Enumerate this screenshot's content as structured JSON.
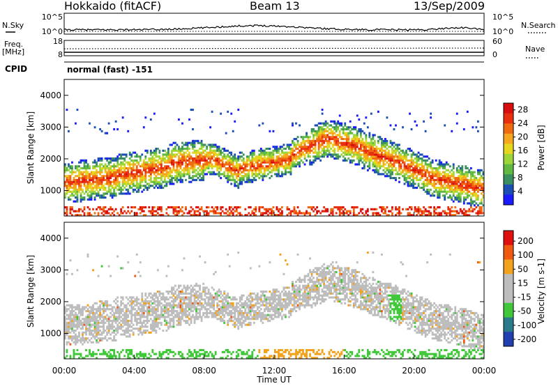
{
  "header": {
    "station": "Hokkaido (fitACF)",
    "beam": "Beam 13",
    "date": "13/Sep/2009",
    "cpid_label": "CPID",
    "cpid_value": "normal (fast) -151"
  },
  "top_panels": {
    "nsky_label": "N.Sky",
    "nsky_ticks": [
      "10^5",
      "10^0"
    ],
    "nsearch_label": "N.Search",
    "nsearch_ticks": [
      "10^5",
      "10^0"
    ],
    "freq_label": "Freq.",
    "freq_unit": "[MHz]",
    "freq_ticks": [
      "18",
      "8"
    ],
    "nave_label": "Nave",
    "nave_ticks": [
      "60",
      "0"
    ]
  },
  "chart_data": [
    {
      "type": "heatmap",
      "name": "power",
      "ylabel": "Slant Range [km]",
      "yticks": [
        "1000",
        "2000",
        "3000",
        "4000"
      ],
      "ylim": [
        200,
        4500
      ],
      "xlim": [
        0,
        24
      ],
      "colorbar_label": "Power [dB]",
      "colorbar_ticks": [
        "4",
        "8",
        "12",
        "16",
        "20",
        "24",
        "28"
      ],
      "colorscale": [
        "#1a1aff",
        "#1c4fb5",
        "#3a8f5e",
        "#61b843",
        "#9ed63a",
        "#e6d61e",
        "#f5a81e",
        "#f06a12",
        "#e83010",
        "#d80e0e"
      ]
    },
    {
      "type": "heatmap",
      "name": "velocity",
      "ylabel": "Slant Range [km]",
      "yticks": [
        "1000",
        "2000",
        "3000",
        "4000"
      ],
      "ylim": [
        200,
        4500
      ],
      "xlim": [
        0,
        24
      ],
      "colorbar_label": "Velocity [m s-1]",
      "colorbar_ticks": [
        "200",
        "100",
        "50",
        "15",
        "-15",
        "-50",
        "-100",
        "-200"
      ],
      "colorscale": [
        "#2040b0",
        "#2a7a8a",
        "#41c83a",
        "#bdbdbd",
        "#bdbdbd",
        "#f2a21c",
        "#f05a10",
        "#e01010"
      ]
    }
  ],
  "x_axis": {
    "ticks": [
      "00:00",
      "04:00",
      "08:00",
      "12:00",
      "16:00",
      "20:00",
      "00:00"
    ],
    "label": "Time UT"
  }
}
